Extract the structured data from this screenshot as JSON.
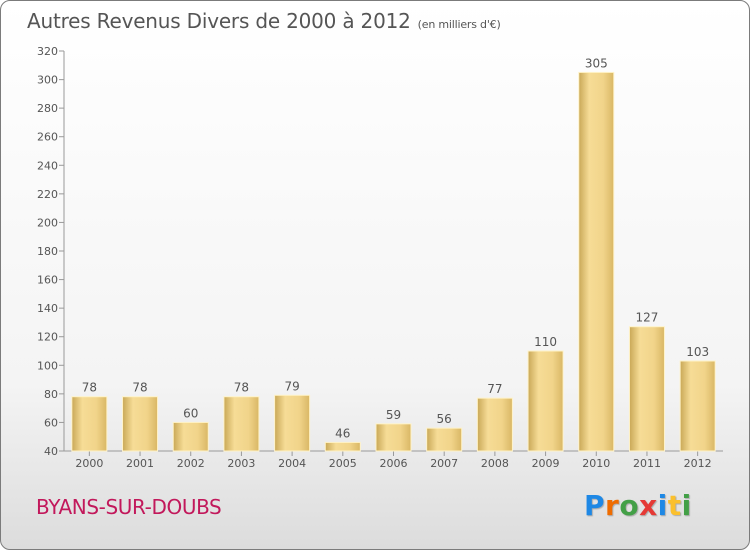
{
  "title": "Autres Revenus Divers de 2000 à 2012",
  "subtitle": "(en milliers d'€)",
  "location": "BYANS-SUR-DOUBS",
  "logo": {
    "letters": [
      "P",
      "r",
      "o",
      "x",
      "i",
      "t",
      "i"
    ],
    "colors": [
      "#1e88e5",
      "#ef6c00",
      "#43a047",
      "#e53935",
      "#1e88e5",
      "#fbc02d",
      "#43a047"
    ]
  },
  "chart_data": {
    "type": "bar",
    "categories": [
      "2000",
      "2001",
      "2002",
      "2003",
      "2004",
      "2005",
      "2006",
      "2007",
      "2008",
      "2009",
      "2010",
      "2011",
      "2012"
    ],
    "values": [
      78,
      78,
      60,
      78,
      79,
      46,
      59,
      56,
      77,
      110,
      305,
      127,
      103
    ],
    "yticks": [
      40,
      60,
      80,
      100,
      120,
      140,
      160,
      180,
      200,
      220,
      240,
      260,
      280,
      300,
      320
    ],
    "ylim": [
      40,
      320
    ],
    "grid": false,
    "bar_color": "#e8cc80"
  }
}
